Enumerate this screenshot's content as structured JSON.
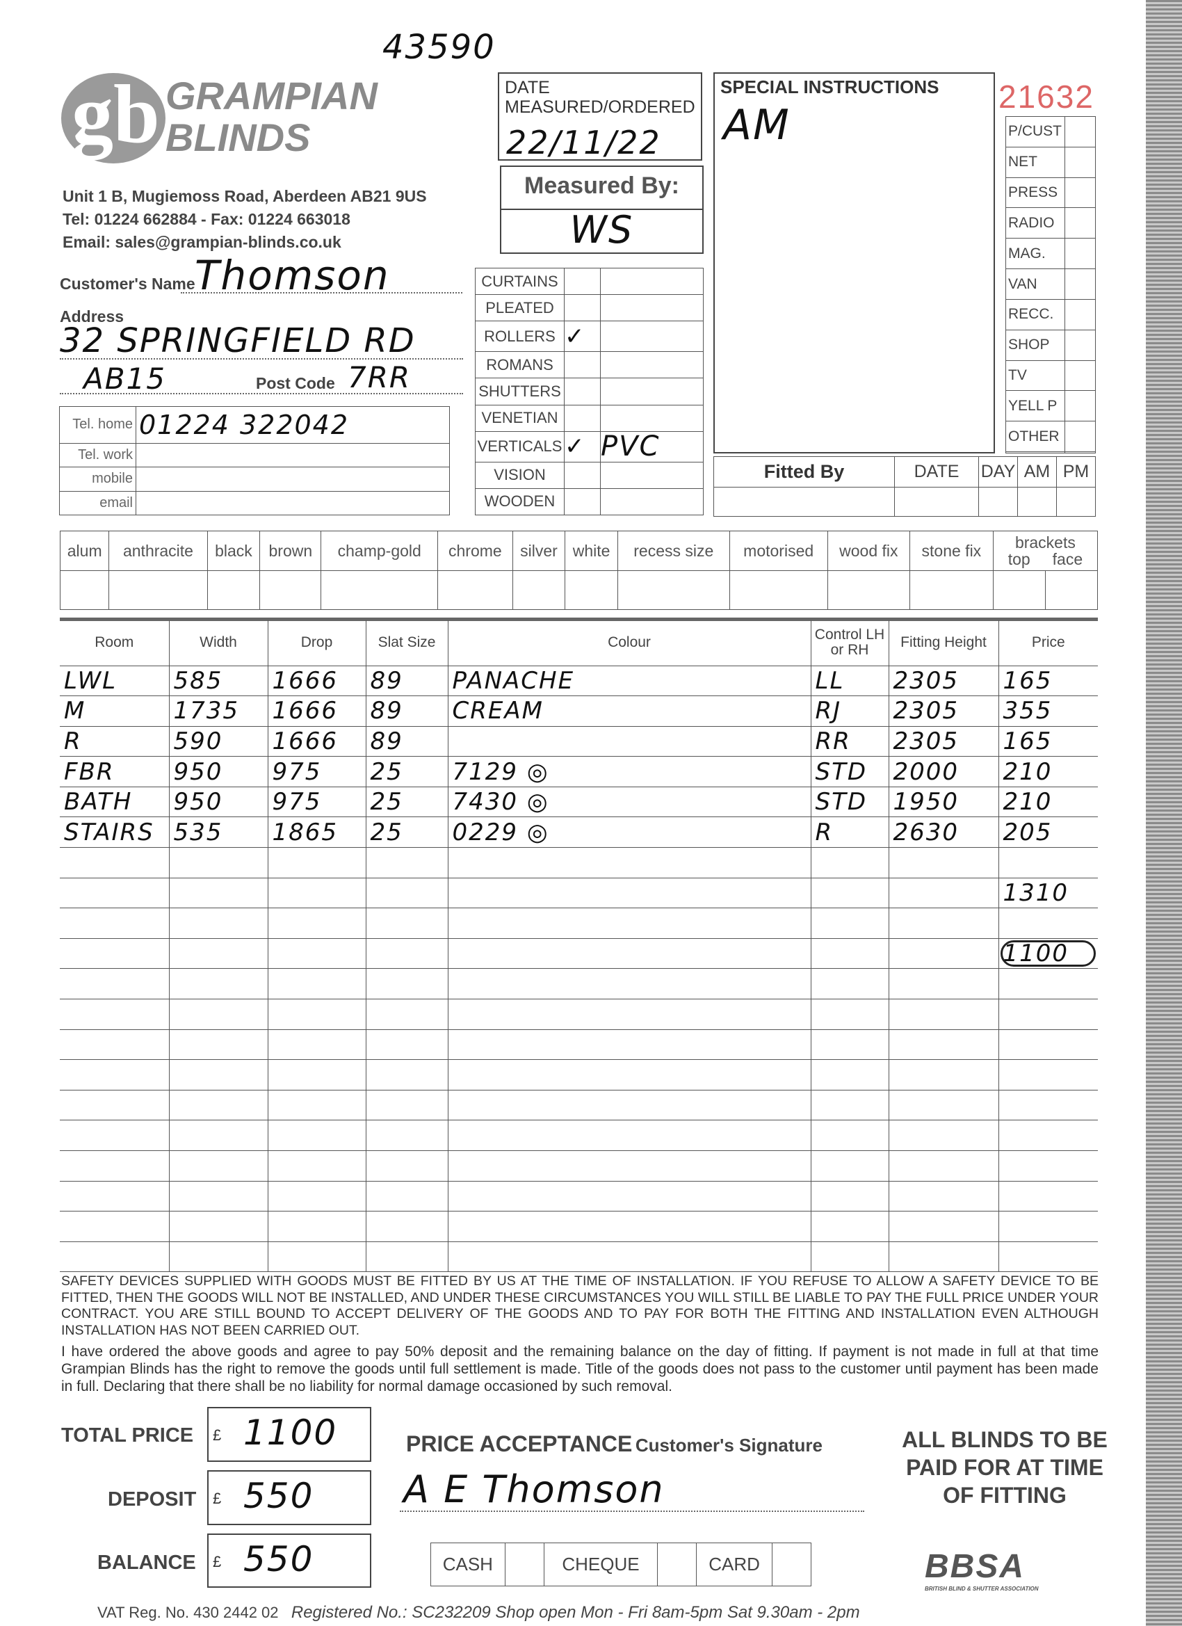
{
  "order_number": "43590",
  "form_number": "21632",
  "company": {
    "name_line1": "GRAMPIAN",
    "name_line2": "BLINDS",
    "logo_letters": "gb",
    "address": "Unit 1 B, Mugiemoss Road, Aberdeen AB21 9US",
    "phone": "Tel: 01224 662884  -  Fax: 01224 663018",
    "email": "Email: sales@grampian-blinds.co.uk"
  },
  "date": {
    "label": "DATE MEASURED/ORDERED",
    "value": "22/11/22"
  },
  "measured_by": {
    "label": "Measured By:",
    "value": "WS"
  },
  "special": {
    "label": "SPECIAL INSTRUCTIONS",
    "value": "AM"
  },
  "sources": [
    "P/CUST",
    "NET",
    "PRESS",
    "RADIO",
    "MAG.",
    "VAN",
    "RECC.",
    "SHOP",
    "TV",
    "YELL P",
    "OTHER",
    ""
  ],
  "customer": {
    "name_label": "Customer's Name",
    "name": "Thomson",
    "address_label": "Address",
    "address1": "32 SPRINGFIELD RD",
    "address2": "AB15",
    "postcode_label": "Post Code",
    "postcode": "7RR"
  },
  "phones": [
    {
      "label": "Tel. home",
      "value": "01224 322042"
    },
    {
      "label": "Tel. work",
      "value": ""
    },
    {
      "label": "mobile",
      "value": ""
    },
    {
      "label": "email",
      "value": ""
    }
  ],
  "products": [
    {
      "label": "CURTAINS",
      "tick": "",
      "note": ""
    },
    {
      "label": "PLEATED",
      "tick": "",
      "note": ""
    },
    {
      "label": "ROLLERS",
      "tick": "✓",
      "note": ""
    },
    {
      "label": "ROMANS",
      "tick": "",
      "note": ""
    },
    {
      "label": "SHUTTERS",
      "tick": "",
      "note": ""
    },
    {
      "label": "VENETIAN",
      "tick": "",
      "note": ""
    },
    {
      "label": "VERTICALS",
      "tick": "✓",
      "note": "PVC"
    },
    {
      "label": "VISION",
      "tick": "",
      "note": ""
    },
    {
      "label": "WOODEN",
      "tick": "",
      "note": ""
    }
  ],
  "fitted": {
    "label": "Fitted By",
    "date": "DATE",
    "day": "DAY",
    "am": "AM",
    "pm": "PM"
  },
  "finishes": [
    "alum",
    "anthracite",
    "black",
    "brown",
    "champ-gold",
    "chrome",
    "silver",
    "white",
    "recess size",
    "motorised",
    "wood fix",
    "stone fix"
  ],
  "brackets": {
    "label": "brackets",
    "top": "top",
    "face": "face"
  },
  "table": {
    "headers": [
      "Room",
      "Width",
      "Drop",
      "Slat Size",
      "Colour",
      "Control LH or RH",
      "Fitting Height",
      "Price"
    ],
    "rows": [
      [
        "LWL",
        "585",
        "1666",
        "89",
        "PANACHE",
        "LL",
        "2305",
        "165"
      ],
      [
        "M",
        "1735",
        "1666",
        "89",
        "CREAM",
        "RJ",
        "2305",
        "355"
      ],
      [
        "R",
        "590",
        "1666",
        "89",
        "",
        "RR",
        "2305",
        "165"
      ],
      [
        "FBR",
        "950",
        "975",
        "25",
        "7129 ◎",
        "STD",
        "2000",
        "210"
      ],
      [
        "BATH",
        "950",
        "975",
        "25",
        "7430 ◎",
        "STD",
        "1950",
        "210"
      ],
      [
        "STAIRS",
        "535",
        "1865",
        "25",
        "0229 ◎",
        "R",
        "2630",
        "205"
      ]
    ],
    "subtotal": "1310",
    "total_circled": "1100"
  },
  "legal": {
    "safety": "SAFETY DEVICES SUPPLIED WITH GOODS MUST BE FITTED BY US AT THE TIME OF INSTALLATION. IF YOU REFUSE TO ALLOW A SAFETY DEVICE TO BE FITTED, THEN THE GOODS WILL NOT BE INSTALLED, AND UNDER THESE CIRCUMSTANCES YOU WILL STILL BE LIABLE TO PAY THE FULL PRICE UNDER YOUR CONTRACT. YOU ARE STILL BOUND TO ACCEPT DELIVERY OF THE GOODS AND TO PAY FOR BOTH THE FITTING AND INSTALLATION EVEN ALTHOUGH INSTALLATION HAS NOT BEEN CARRIED OUT.",
    "agreement": "I have ordered the above goods and agree to pay 50% deposit and the remaining balance on the day of fitting. If payment is not made in full at that time Grampian Blinds has the right to remove the goods until full settlement is made. Title of the goods does not pass to the customer until payment has been made in full. Declaring that there shall be no liability for normal damage occasioned by such removal."
  },
  "payment": {
    "currency": "£",
    "total_label": "TOTAL PRICE",
    "total": "1100",
    "deposit_label": "DEPOSIT",
    "deposit": "550",
    "balance_label": "BALANCE",
    "balance": "550",
    "acceptance": "PRICE ACCEPTANCE",
    "signature_label": "Customer's Signature",
    "signature": "A E Thomson",
    "cash": "CASH",
    "cheque": "CHEQUE",
    "card": "CARD"
  },
  "notice": "ALL BLINDS TO BE PAID FOR AT TIME OF FITTING",
  "bbsa": "BBSA",
  "bbsa_sub": "BRITISH BLIND & SHUTTER ASSOCIATION",
  "footer": {
    "vat": "VAT Reg. No. 430 2442 02",
    "registered": "Registered No.: SC232209  Shop open Mon - Fri 8am-5pm  Sat 9.30am - 2pm"
  }
}
